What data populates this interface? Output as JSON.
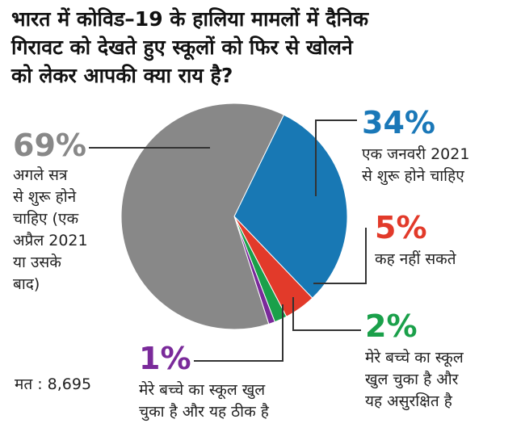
{
  "chart_data": {
    "type": "pie",
    "title_lines": [
      "भारत में कोविड–19 के हालिया मामलों में दैनिक",
      "गिरावट को देखते हुए स्कूलों को फिर से खोलने",
      "को लेकर आपकी क्या राय है?"
    ],
    "slices": [
      {
        "value": 69,
        "pct_label": "69%",
        "color": "#888888",
        "pct_color": "#888888",
        "label_lines": [
          "अगले सत्र",
          "से शुरू होने",
          "चाहिए (एक",
          "अप्रैल 2021",
          "या उसके",
          "बाद)"
        ]
      },
      {
        "value": 34,
        "pct_label": "34%",
        "color": "#1878b4",
        "pct_color": "#1a78b8",
        "label_lines": [
          "एक जनवरी 2021",
          "से शुरू होने चाहिए"
        ]
      },
      {
        "value": 5,
        "pct_label": "5%",
        "color": "#e23a2a",
        "pct_color": "#e23a2a",
        "label_lines": [
          "कह नहीं सकते"
        ]
      },
      {
        "value": 2,
        "pct_label": "2%",
        "color": "#1aa04a",
        "pct_color": "#1aa04a",
        "label_lines": [
          "मेरे बच्चे का स्कूल",
          "खुल चुका है और",
          "यह असुरक्षित है"
        ]
      },
      {
        "value": 1,
        "pct_label": "1%",
        "color": "#7a2a9a",
        "pct_color": "#7a2a9a",
        "label_lines": [
          "मेरे बच्चे का स्कूल खुल",
          "चुका है और यह ठीक है"
        ]
      }
    ],
    "total_label": "मत : 8,695"
  }
}
